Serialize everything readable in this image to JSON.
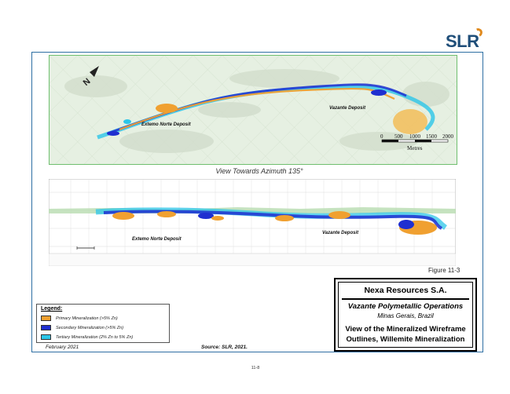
{
  "brand": {
    "logo_text": "SLR"
  },
  "plan_map": {
    "deposit_left": "Extemo Norte Deposit",
    "deposit_right": "Vazante Deposit",
    "north_arrow": "N",
    "scale_ticks": [
      "0",
      "500",
      "1000",
      "1500",
      "2000"
    ],
    "scale_unit": "Metres"
  },
  "section": {
    "view_title": "View Towards Azimuth 135°",
    "deposit_left": "Extemo Norte Deposit",
    "deposit_right": "Vazante Deposit"
  },
  "figure": {
    "label": "Figure 11-3"
  },
  "title_block": {
    "company": "Nexa Resources S.A.",
    "project": "Vazante Polymetallic Operations",
    "location": "Minas Gerais, Brazil",
    "description_line1": "View of the Mineralized Wireframe",
    "description_line2": "Outlines, Willemite Mineralization"
  },
  "legend": {
    "title": "Legend:",
    "items": [
      {
        "label": "Primary Mineralization (>5% Zn)",
        "color": "#f0a030"
      },
      {
        "label": "Secondary Mineralization (>5% Zn)",
        "color": "#1f2fd0"
      },
      {
        "label": "Tertiary Mineralization (2% Zn to 5% Zn)",
        "color": "#2cc6e8"
      }
    ]
  },
  "footer": {
    "date": "February 2021",
    "source": "Source: SLR, 2021.",
    "page_number": "11-8"
  },
  "colors": {
    "frame": "#2e6fa3",
    "map_border": "#6fbf6f",
    "terrain": "#e6f0e2",
    "primary": "#f0a030",
    "secondary": "#1f2fd0",
    "tertiary": "#2cc6e8"
  }
}
